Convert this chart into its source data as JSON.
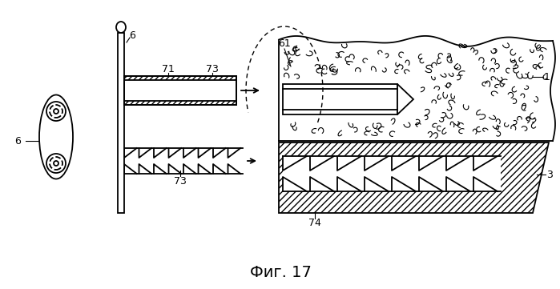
{
  "title": "Фиг. 17",
  "title_fontsize": 14,
  "background_color": "#ffffff",
  "line_color": "#000000",
  "fig_width": 6.99,
  "fig_height": 3.61,
  "dpi": 100
}
